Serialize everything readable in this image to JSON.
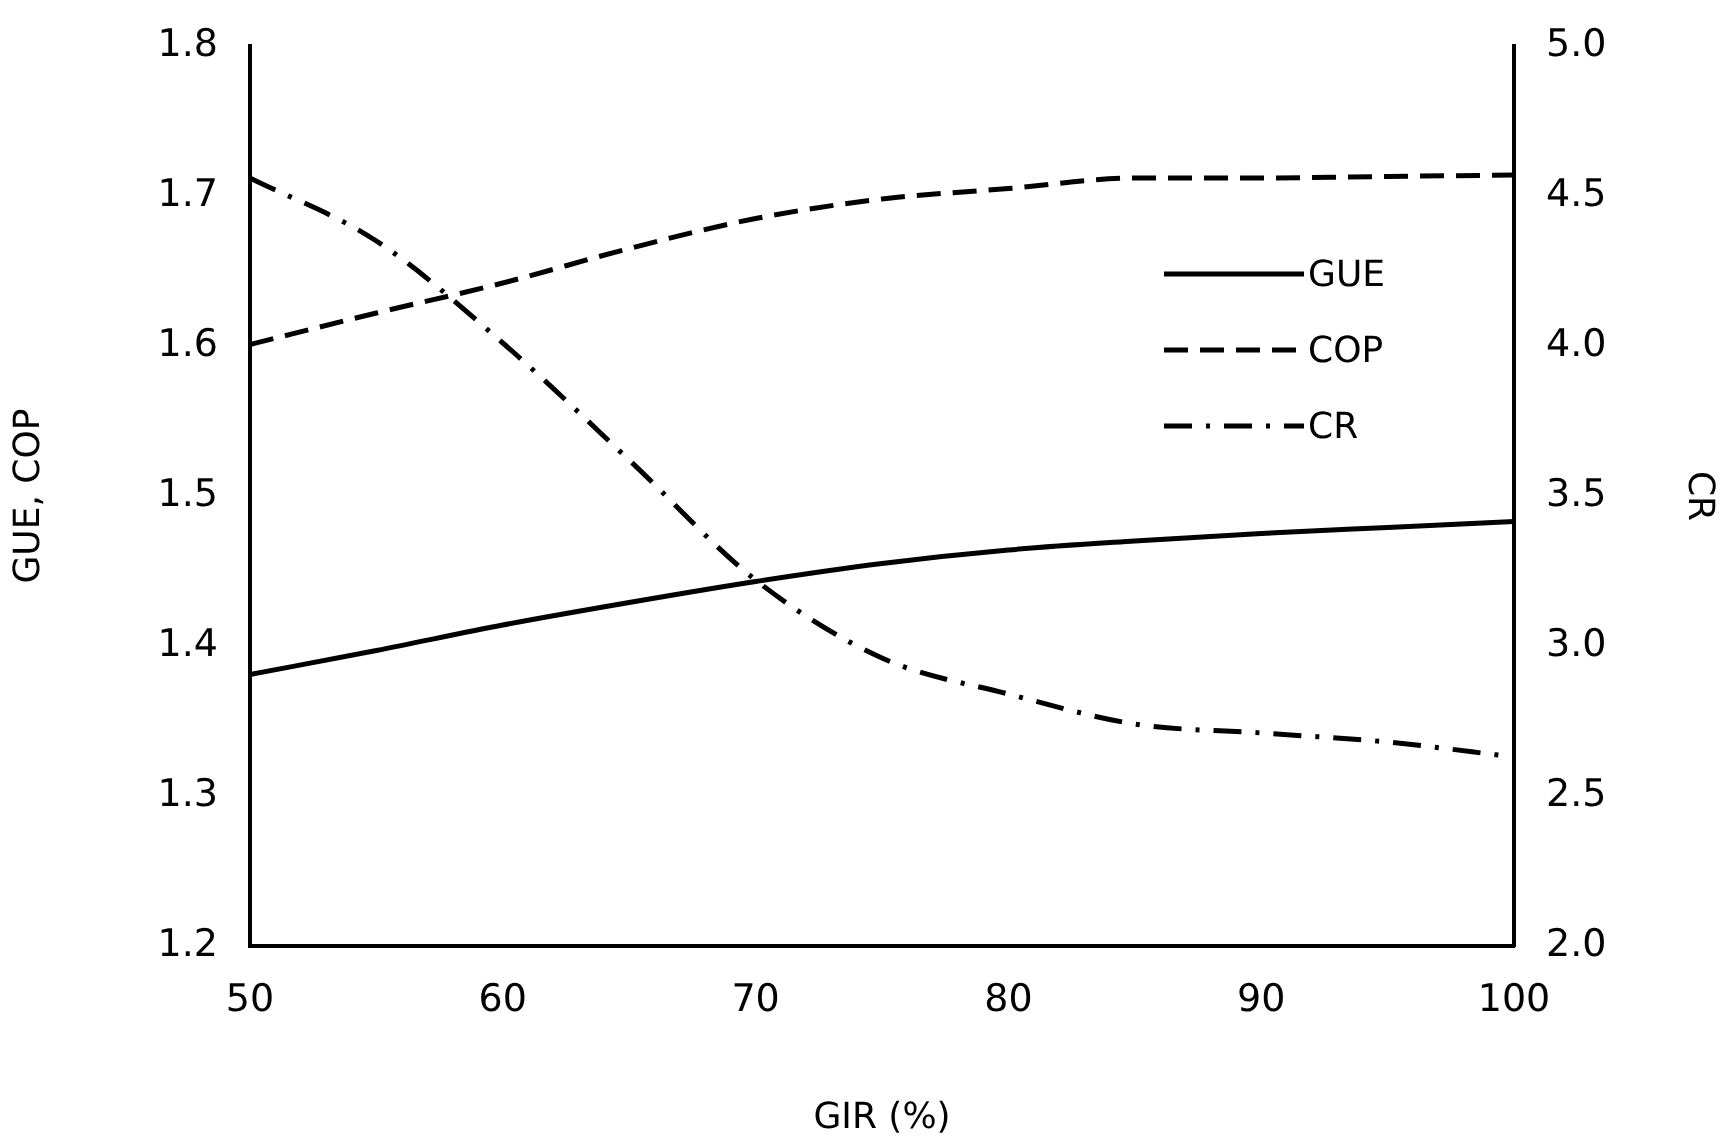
{
  "chart_data": {
    "type": "line",
    "xlabel": "GIR (%)",
    "ylabel": "GUE, COP",
    "y2label": "CR",
    "x": [
      50,
      55,
      60,
      65,
      70,
      75,
      80,
      85,
      90,
      95,
      100
    ],
    "series": [
      {
        "name": "GUE",
        "color": "#000000",
        "line_style": "solid",
        "values": [
          1.381,
          1.397,
          1.414,
          1.429,
          1.443,
          1.455,
          1.464,
          1.47,
          1.475,
          1.479,
          1.483
        ]
      },
      {
        "name": "COP",
        "color": "#000000",
        "line_style": "dashed",
        "values": [
          1.601,
          1.622,
          1.642,
          1.665,
          1.685,
          1.698,
          1.705,
          1.712,
          1.712,
          1.713,
          1.714
        ]
      },
      {
        "name": "CR",
        "color": "#000000",
        "line_style": "dashdot",
        "axis": "y2",
        "values": [
          4.56,
          4.35,
          4.01,
          3.62,
          3.22,
          2.96,
          2.84,
          2.74,
          2.71,
          2.68,
          2.63
        ]
      }
    ],
    "xlim": [
      50,
      100
    ],
    "xticks": [
      50,
      60,
      70,
      80,
      90,
      100
    ],
    "ylim": [
      1.2,
      1.8
    ],
    "yticks": [
      {
        "value": 1.2,
        "label": "1.2"
      },
      {
        "value": 1.3,
        "label": "1.3"
      },
      {
        "value": 1.4,
        "label": "1.4"
      },
      {
        "value": 1.5,
        "label": "1.5"
      },
      {
        "value": 1.6,
        "label": "1.6"
      },
      {
        "value": 1.7,
        "label": "1.7"
      },
      {
        "value": 1.8,
        "label": "1.8"
      }
    ],
    "y2lim": [
      2,
      5
    ],
    "y2ticks": [
      {
        "value": 2,
        "label": "2.0"
      },
      {
        "value": 2.5,
        "label": "2.5"
      },
      {
        "value": 3,
        "label": "3.0"
      },
      {
        "value": 3.5,
        "label": "3.5"
      },
      {
        "value": 4,
        "label": "4.0"
      },
      {
        "value": 4.5,
        "label": "4.5"
      },
      {
        "value": 5,
        "label": "5.0"
      }
    ],
    "grid": false,
    "legend": "top right",
    "marker": "none"
  }
}
